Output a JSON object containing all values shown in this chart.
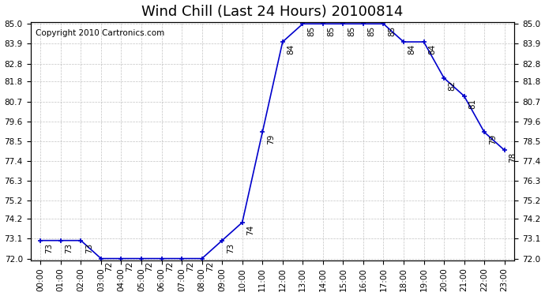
{
  "title": "Wind Chill (Last 24 Hours) 20100814",
  "copyright": "Copyright 2010 Cartronics.com",
  "hours": [
    0,
    1,
    2,
    3,
    4,
    5,
    6,
    7,
    8,
    9,
    10,
    11,
    12,
    13,
    14,
    15,
    16,
    17,
    18,
    19,
    20,
    21,
    22,
    23
  ],
  "values": [
    73,
    73,
    73,
    72,
    72,
    72,
    72,
    72,
    72,
    73,
    74,
    79,
    84,
    85,
    85,
    85,
    85,
    85,
    84,
    84,
    82,
    81,
    79,
    78
  ],
  "line_color": "#0000CC",
  "marker_color": "#0000CC",
  "bg_color": "#FFFFFF",
  "grid_color": "#AAAAAA",
  "ylim_min": 72.0,
  "ylim_max": 85.0,
  "yticks": [
    72.0,
    73.1,
    74.2,
    75.2,
    76.3,
    77.4,
    78.5,
    79.6,
    80.7,
    81.8,
    82.8,
    83.9,
    85.0
  ],
  "title_fontsize": 13,
  "label_fontsize": 7.5,
  "copyright_fontsize": 7.5,
  "tick_fontsize": 7.5
}
